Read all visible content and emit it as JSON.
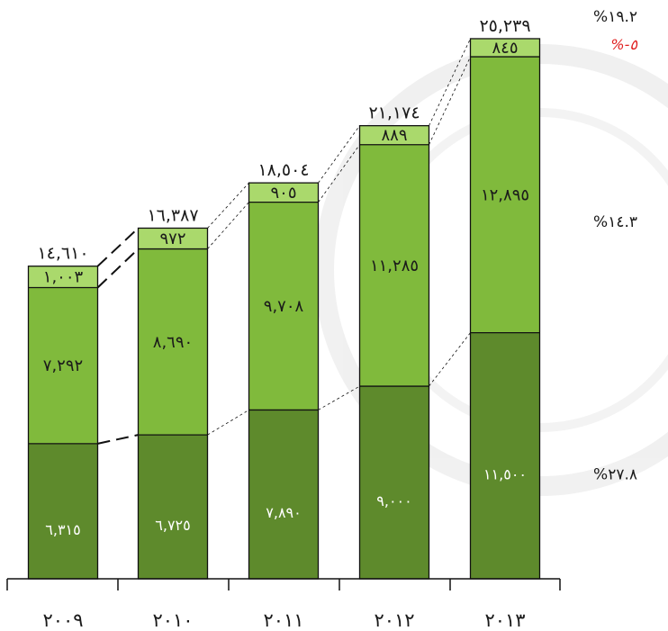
{
  "colors": {
    "dark_green": "#5e8a2c",
    "mid_green": "#80ba3c",
    "light_green": "#aad96c",
    "axis": "#111111",
    "red": "#e02020",
    "watermark": "#ececec"
  },
  "chart_data": {
    "type": "bar",
    "stacked": true,
    "categories": [
      "٢٠٠٩",
      "٢٠١٠",
      "٢٠١١",
      "٢٠١٢",
      "٢٠١٣"
    ],
    "series": [
      {
        "values": [
          6315,
          6725,
          7890,
          9000,
          11500
        ],
        "labels": [
          "٦,٣١٥",
          "٦,٧٢٥",
          "٧,٨٩٠",
          "٩,٠٠٠",
          "١١,٥٠٠"
        ]
      },
      {
        "values": [
          7292,
          8690,
          9708,
          11285,
          12895
        ],
        "labels": [
          "٧,٢٩٢",
          "٨,٦٩٠",
          "٩,٧٠٨",
          "١١,٢٨٥",
          "١٢,٨٩٥"
        ]
      },
      {
        "values": [
          1003,
          972,
          905,
          889,
          845
        ],
        "labels": [
          "١,٠٠٣",
          "٩٧٢",
          "٩٠٥",
          "٨٨٩",
          "٨٤٥"
        ]
      }
    ],
    "totals": [
      14610,
      16387,
      18504,
      21174,
      25239
    ],
    "total_labels": [
      "١٤,٦١٠",
      "١٦,٣٨٧",
      "١٨,٥٠٤",
      "٢١,١٧٤",
      "٢٥,٢٣٩"
    ],
    "growth_labels": [
      "%٢٧.٨",
      "%١٤.٣",
      "%١٩.٢",
      "%-٥"
    ],
    "ylim": [
      0,
      25239
    ],
    "grid": false,
    "legend": "none",
    "title": "",
    "xlabel": "",
    "ylabel": ""
  }
}
